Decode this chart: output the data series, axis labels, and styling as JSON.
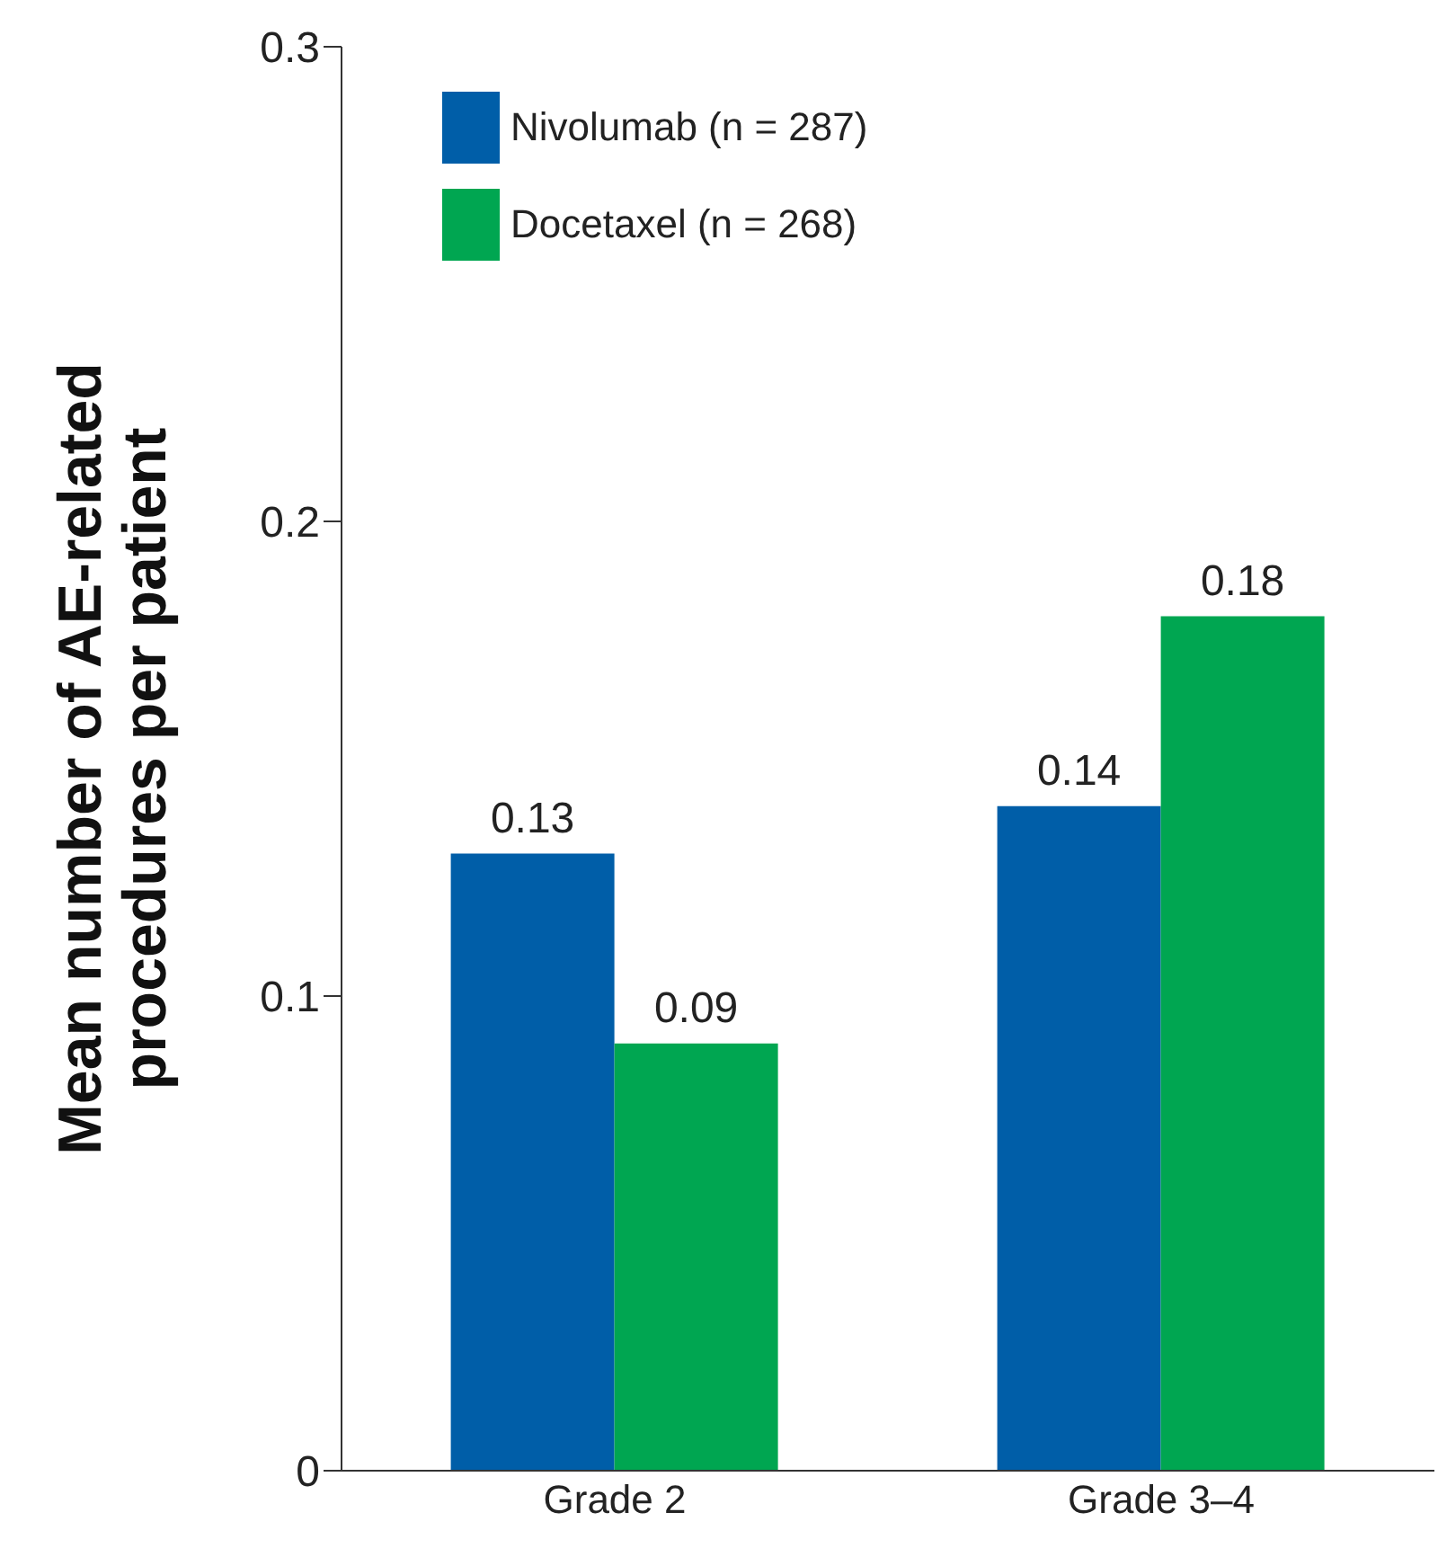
{
  "chart_data": {
    "type": "bar",
    "ylabel": "Mean number of AE-related procedures per patient",
    "categories": [
      "Grade 2",
      "Grade 3–4"
    ],
    "series": [
      {
        "name": "Nivolumab (n = 287)",
        "color": "#005ea8",
        "values": [
          0.13,
          0.14
        ]
      },
      {
        "name": "Docetaxel (n = 268)",
        "color": "#00a651",
        "values": [
          0.09,
          0.18
        ]
      }
    ],
    "ylim": [
      0,
      0.3
    ],
    "yticks": [
      0,
      0.1,
      0.2,
      0.3
    ],
    "data_labels": true,
    "legend": "top left",
    "grid": false
  }
}
